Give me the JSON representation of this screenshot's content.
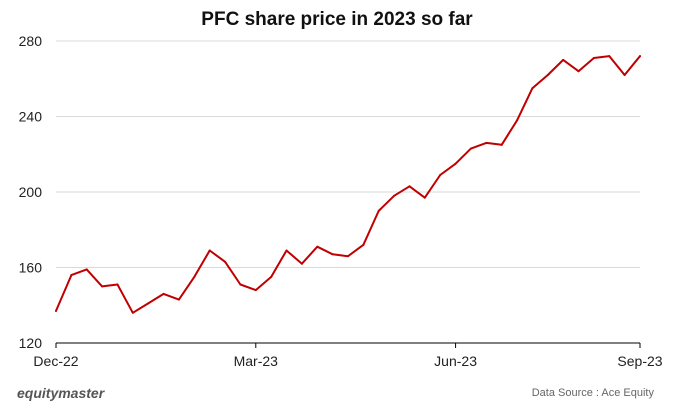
{
  "chart_data": {
    "type": "line",
    "title": "PFC share price in 2023 so far",
    "xlabel": "",
    "ylabel": "",
    "ylim": [
      120,
      280
    ],
    "yticks": [
      120,
      160,
      200,
      240,
      280
    ],
    "x_tick_labels": [
      "Dec-22",
      "Mar-23",
      "Jun-23",
      "Sep-23"
    ],
    "x_tick_index": [
      0,
      13,
      26,
      38
    ],
    "grid": true,
    "series": [
      {
        "name": "PFC share price",
        "color": "#c00000",
        "values": [
          137,
          156,
          159,
          150,
          151,
          136,
          141,
          146,
          143,
          155,
          169,
          163,
          151,
          148,
          155,
          169,
          162,
          171,
          167,
          166,
          172,
          190,
          198,
          203,
          197,
          209,
          215,
          223,
          226,
          225,
          238,
          255,
          262,
          270,
          264,
          271,
          272,
          262,
          272
        ]
      }
    ]
  },
  "footer": {
    "brand": "equitymaster",
    "source": "Data Source : Ace Equity"
  }
}
